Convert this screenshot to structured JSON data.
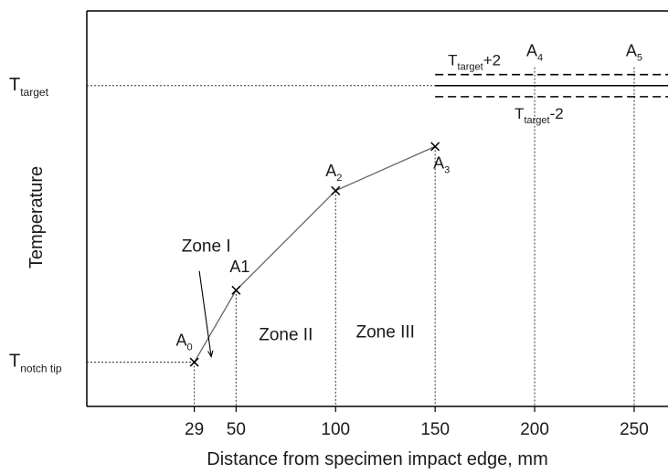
{
  "chart_data": {
    "type": "line",
    "xlabel": "Distance from specimen impact edge, mm",
    "ylabel": "Temperature",
    "xlim": [
      -25,
      267
    ],
    "x_ticks": [
      29,
      50,
      100,
      150,
      200,
      250
    ],
    "x_tick_labels": [
      "29",
      "50",
      "100",
      "150",
      "200",
      "250"
    ],
    "y_ticks": [
      {
        "base": "T",
        "sub": "target",
        "value": 100
      },
      {
        "base": "T",
        "sub": "notch tip",
        "value": 0
      }
    ],
    "ylim": [
      -16,
      127
    ],
    "series": [
      {
        "points": [
          {
            "x": 29,
            "y": 0,
            "label_base": "A",
            "label_sub": "0"
          },
          {
            "x": 50,
            "y": 26,
            "label_base": "A1",
            "label_sub": ""
          },
          {
            "x": 100,
            "y": 62,
            "label_base": "A",
            "label_sub": "2"
          },
          {
            "x": 150,
            "y": 78,
            "label_base": "A",
            "label_sub": "3"
          }
        ]
      }
    ],
    "target_band": {
      "x_start": 150,
      "upper": 104,
      "center": 100,
      "lower": 96,
      "upper_label": {
        "base": "T",
        "sub": "target",
        "suffix": "+2"
      },
      "lower_label": {
        "base": "T",
        "sub": "target",
        "suffix": "-2"
      }
    },
    "band_markers": [
      {
        "x": 200,
        "label_base": "A",
        "label_sub": "4"
      },
      {
        "x": 250,
        "label_base": "A",
        "label_sub": "5"
      }
    ],
    "zones": [
      {
        "label": "Zone I",
        "x": 35,
        "y": 40
      },
      {
        "label": "Zone II",
        "x": 75,
        "y": 8
      },
      {
        "label": "Zone III",
        "x": 125,
        "y": 9
      }
    ],
    "grid": false
  }
}
